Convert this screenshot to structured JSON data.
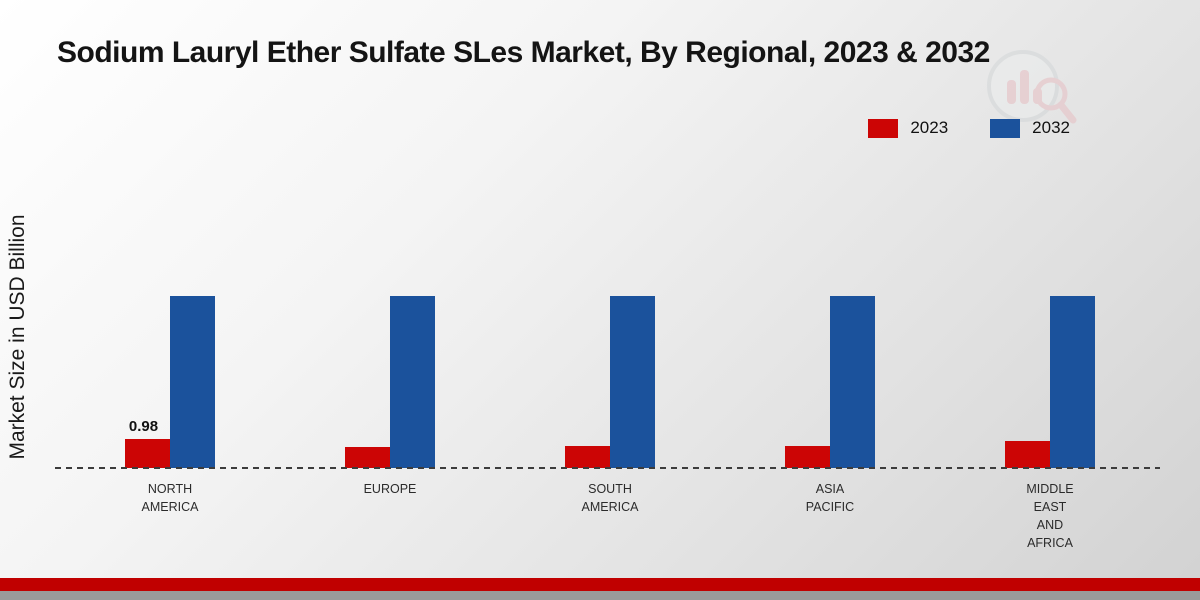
{
  "title": "Sodium Lauryl Ether Sulfate SLes Market, By Regional, 2023 & 2032",
  "ylabel": "Market Size in USD Billion",
  "chart_data": {
    "type": "bar",
    "categories": [
      "NORTH\nAMERICA",
      "EUROPE",
      "SOUTH\nAMERICA",
      "ASIA\nPACIFIC",
      "MIDDLE\nEAST\nAND\nAFRICA"
    ],
    "series": [
      {
        "name": "2023",
        "color": "#cc0505",
        "values": [
          0.98,
          0.72,
          0.73,
          0.76,
          0.9
        ]
      },
      {
        "name": "2032",
        "color": "#1b529c",
        "values": [
          5.8,
          5.8,
          5.8,
          5.8,
          5.8
        ]
      }
    ],
    "annotations": [
      {
        "series": "2023",
        "category_index": 0,
        "text": "0.98"
      }
    ],
    "ylim": [
      0,
      7
    ],
    "baseline_style": "dashed",
    "legend_position": "top-right",
    "grid": false
  },
  "colors": {
    "series_2023": "#cc0505",
    "series_2032": "#1b529c",
    "footer_red": "#c00000",
    "footer_gray": "#9a9a9a"
  }
}
